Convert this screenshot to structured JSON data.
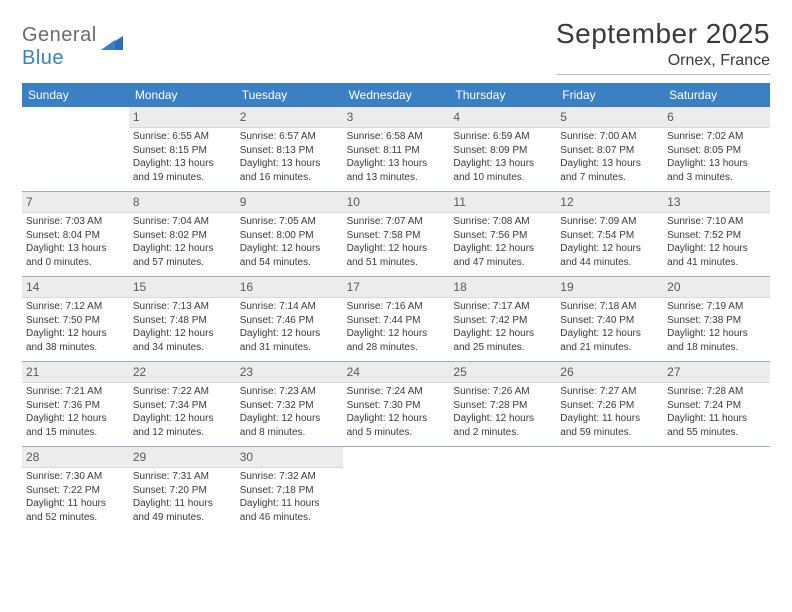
{
  "brand": {
    "part1": "General",
    "part2": "Blue"
  },
  "title": "September 2025",
  "location": "Ornex, France",
  "colors": {
    "header_bg": "#3a80c3",
    "header_fg": "#ffffff",
    "daynum_bg": "#ececec",
    "divider": "#2a4a7a",
    "text": "#3a3a3a",
    "brand_gray": "#6b6b6b",
    "brand_blue": "#3a80c3"
  },
  "day_names": [
    "Sunday",
    "Monday",
    "Tuesday",
    "Wednesday",
    "Thursday",
    "Friday",
    "Saturday"
  ],
  "weeks": [
    [
      {
        "blank": true
      },
      {
        "n": "1",
        "sr": "Sunrise: 6:55 AM",
        "ss": "Sunset: 8:15 PM",
        "dl1": "Daylight: 13 hours",
        "dl2": "and 19 minutes."
      },
      {
        "n": "2",
        "sr": "Sunrise: 6:57 AM",
        "ss": "Sunset: 8:13 PM",
        "dl1": "Daylight: 13 hours",
        "dl2": "and 16 minutes."
      },
      {
        "n": "3",
        "sr": "Sunrise: 6:58 AM",
        "ss": "Sunset: 8:11 PM",
        "dl1": "Daylight: 13 hours",
        "dl2": "and 13 minutes."
      },
      {
        "n": "4",
        "sr": "Sunrise: 6:59 AM",
        "ss": "Sunset: 8:09 PM",
        "dl1": "Daylight: 13 hours",
        "dl2": "and 10 minutes."
      },
      {
        "n": "5",
        "sr": "Sunrise: 7:00 AM",
        "ss": "Sunset: 8:07 PM",
        "dl1": "Daylight: 13 hours",
        "dl2": "and 7 minutes."
      },
      {
        "n": "6",
        "sr": "Sunrise: 7:02 AM",
        "ss": "Sunset: 8:05 PM",
        "dl1": "Daylight: 13 hours",
        "dl2": "and 3 minutes."
      }
    ],
    [
      {
        "n": "7",
        "sr": "Sunrise: 7:03 AM",
        "ss": "Sunset: 8:04 PM",
        "dl1": "Daylight: 13 hours",
        "dl2": "and 0 minutes."
      },
      {
        "n": "8",
        "sr": "Sunrise: 7:04 AM",
        "ss": "Sunset: 8:02 PM",
        "dl1": "Daylight: 12 hours",
        "dl2": "and 57 minutes."
      },
      {
        "n": "9",
        "sr": "Sunrise: 7:05 AM",
        "ss": "Sunset: 8:00 PM",
        "dl1": "Daylight: 12 hours",
        "dl2": "and 54 minutes."
      },
      {
        "n": "10",
        "sr": "Sunrise: 7:07 AM",
        "ss": "Sunset: 7:58 PM",
        "dl1": "Daylight: 12 hours",
        "dl2": "and 51 minutes."
      },
      {
        "n": "11",
        "sr": "Sunrise: 7:08 AM",
        "ss": "Sunset: 7:56 PM",
        "dl1": "Daylight: 12 hours",
        "dl2": "and 47 minutes."
      },
      {
        "n": "12",
        "sr": "Sunrise: 7:09 AM",
        "ss": "Sunset: 7:54 PM",
        "dl1": "Daylight: 12 hours",
        "dl2": "and 44 minutes."
      },
      {
        "n": "13",
        "sr": "Sunrise: 7:10 AM",
        "ss": "Sunset: 7:52 PM",
        "dl1": "Daylight: 12 hours",
        "dl2": "and 41 minutes."
      }
    ],
    [
      {
        "n": "14",
        "sr": "Sunrise: 7:12 AM",
        "ss": "Sunset: 7:50 PM",
        "dl1": "Daylight: 12 hours",
        "dl2": "and 38 minutes."
      },
      {
        "n": "15",
        "sr": "Sunrise: 7:13 AM",
        "ss": "Sunset: 7:48 PM",
        "dl1": "Daylight: 12 hours",
        "dl2": "and 34 minutes."
      },
      {
        "n": "16",
        "sr": "Sunrise: 7:14 AM",
        "ss": "Sunset: 7:46 PM",
        "dl1": "Daylight: 12 hours",
        "dl2": "and 31 minutes."
      },
      {
        "n": "17",
        "sr": "Sunrise: 7:16 AM",
        "ss": "Sunset: 7:44 PM",
        "dl1": "Daylight: 12 hours",
        "dl2": "and 28 minutes."
      },
      {
        "n": "18",
        "sr": "Sunrise: 7:17 AM",
        "ss": "Sunset: 7:42 PM",
        "dl1": "Daylight: 12 hours",
        "dl2": "and 25 minutes."
      },
      {
        "n": "19",
        "sr": "Sunrise: 7:18 AM",
        "ss": "Sunset: 7:40 PM",
        "dl1": "Daylight: 12 hours",
        "dl2": "and 21 minutes."
      },
      {
        "n": "20",
        "sr": "Sunrise: 7:19 AM",
        "ss": "Sunset: 7:38 PM",
        "dl1": "Daylight: 12 hours",
        "dl2": "and 18 minutes."
      }
    ],
    [
      {
        "n": "21",
        "sr": "Sunrise: 7:21 AM",
        "ss": "Sunset: 7:36 PM",
        "dl1": "Daylight: 12 hours",
        "dl2": "and 15 minutes."
      },
      {
        "n": "22",
        "sr": "Sunrise: 7:22 AM",
        "ss": "Sunset: 7:34 PM",
        "dl1": "Daylight: 12 hours",
        "dl2": "and 12 minutes."
      },
      {
        "n": "23",
        "sr": "Sunrise: 7:23 AM",
        "ss": "Sunset: 7:32 PM",
        "dl1": "Daylight: 12 hours",
        "dl2": "and 8 minutes."
      },
      {
        "n": "24",
        "sr": "Sunrise: 7:24 AM",
        "ss": "Sunset: 7:30 PM",
        "dl1": "Daylight: 12 hours",
        "dl2": "and 5 minutes."
      },
      {
        "n": "25",
        "sr": "Sunrise: 7:26 AM",
        "ss": "Sunset: 7:28 PM",
        "dl1": "Daylight: 12 hours",
        "dl2": "and 2 minutes."
      },
      {
        "n": "26",
        "sr": "Sunrise: 7:27 AM",
        "ss": "Sunset: 7:26 PM",
        "dl1": "Daylight: 11 hours",
        "dl2": "and 59 minutes."
      },
      {
        "n": "27",
        "sr": "Sunrise: 7:28 AM",
        "ss": "Sunset: 7:24 PM",
        "dl1": "Daylight: 11 hours",
        "dl2": "and 55 minutes."
      }
    ],
    [
      {
        "n": "28",
        "sr": "Sunrise: 7:30 AM",
        "ss": "Sunset: 7:22 PM",
        "dl1": "Daylight: 11 hours",
        "dl2": "and 52 minutes."
      },
      {
        "n": "29",
        "sr": "Sunrise: 7:31 AM",
        "ss": "Sunset: 7:20 PM",
        "dl1": "Daylight: 11 hours",
        "dl2": "and 49 minutes."
      },
      {
        "n": "30",
        "sr": "Sunrise: 7:32 AM",
        "ss": "Sunset: 7:18 PM",
        "dl1": "Daylight: 11 hours",
        "dl2": "and 46 minutes."
      },
      {
        "blank": true
      },
      {
        "blank": true
      },
      {
        "blank": true
      },
      {
        "blank": true
      }
    ]
  ]
}
